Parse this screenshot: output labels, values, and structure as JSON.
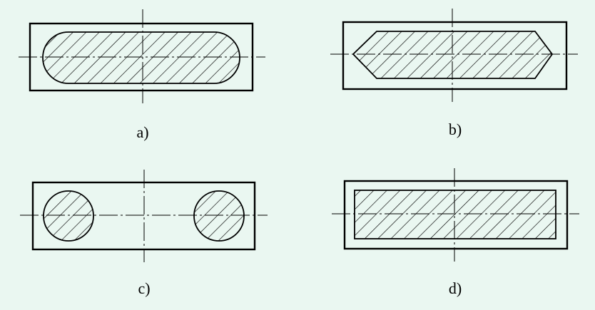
{
  "background": "#eaf7f1",
  "line_color": "#000000",
  "hatch_style": "diagonal-45",
  "panels": [
    {
      "id": "a",
      "label": "a)",
      "section_shape": "rounded-slot"
    },
    {
      "id": "b",
      "label": "b)",
      "section_shape": "pointed-hexagon"
    },
    {
      "id": "c",
      "label": "c)",
      "section_shape": "two-circles"
    },
    {
      "id": "d",
      "label": "d)",
      "section_shape": "inset-rectangle"
    }
  ]
}
